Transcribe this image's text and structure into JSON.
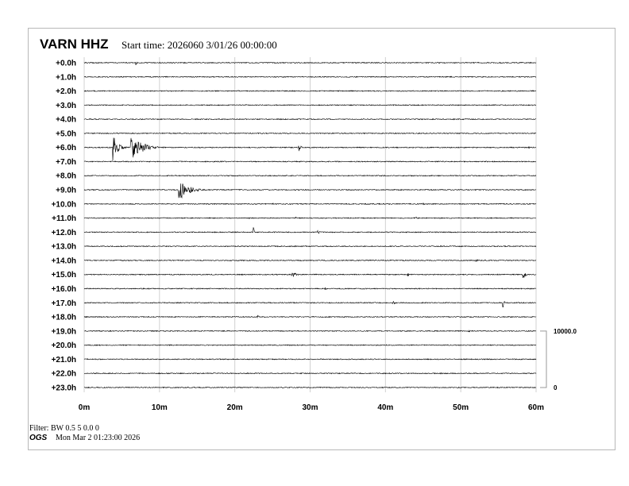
{
  "header": {
    "station": "VARN HHZ",
    "start_time": "Start time: 2026060  3/01/26 00:00:00"
  },
  "footer": {
    "filter": "Filter: BW 0.5 5 0.0 0",
    "org": "OGS",
    "generated": "Mon Mar  2 01:23:00 2026"
  },
  "chart_data": {
    "type": "line",
    "title": "VARN HHZ",
    "row_labels": [
      "+0.0h",
      "+1.0h",
      "+2.0h",
      "+3.0h",
      "+4.0h",
      "+5.0h",
      "+6.0h",
      "+7.0h",
      "+8.0h",
      "+9.0h",
      "+10.0h",
      "+11.0h",
      "+12.0h",
      "+13.0h",
      "+14.0h",
      "+15.0h",
      "+16.0h",
      "+17.0h",
      "+18.0h",
      "+19.0h",
      "+20.0h",
      "+21.0h",
      "+22.0h",
      "+23.0h"
    ],
    "x_ticks": [
      "0m",
      "10m",
      "20m",
      "30m",
      "40m",
      "50m",
      "60m"
    ],
    "xlim": [
      0,
      60
    ],
    "grid": true,
    "scale_labels": [
      "10000.0",
      "0"
    ],
    "trace_color": "#000000",
    "grid_color": "#d0d0d0",
    "events": [
      {
        "hour": 0,
        "minute": 6.9,
        "amplitude": 0.15,
        "duration": 0.3
      },
      {
        "hour": 6,
        "minute": 3.8,
        "amplitude": 1.0,
        "duration": 2.2
      },
      {
        "hour": 6,
        "minute": 6.2,
        "amplitude": 0.95,
        "duration": 5.5
      },
      {
        "hour": 6,
        "minute": 28.5,
        "amplitude": 0.3,
        "duration": 0.8
      },
      {
        "hour": 6,
        "minute": 59.0,
        "amplitude": 0.15,
        "duration": 0.8
      },
      {
        "hour": 9,
        "minute": 12.5,
        "amplitude": 0.9,
        "duration": 4.5
      },
      {
        "hour": 10,
        "minute": 25.0,
        "amplitude": 0.15,
        "duration": 0.3
      },
      {
        "hour": 10,
        "minute": 45.0,
        "amplitude": 0.1,
        "duration": 1.0
      },
      {
        "hour": 11,
        "minute": 28.0,
        "amplitude": 0.1,
        "duration": 1.0
      },
      {
        "hour": 11,
        "minute": 44.0,
        "amplitude": 0.1,
        "duration": 1.5
      },
      {
        "hour": 12,
        "minute": 22.5,
        "amplitude": 0.35,
        "duration": 0.2
      },
      {
        "hour": 12,
        "minute": 31.0,
        "amplitude": 0.15,
        "duration": 1.0
      },
      {
        "hour": 14,
        "minute": 52.0,
        "amplitude": 0.1,
        "duration": 1.5
      },
      {
        "hour": 15,
        "minute": 27.5,
        "amplitude": 0.25,
        "duration": 2.0
      },
      {
        "hour": 15,
        "minute": 43.0,
        "amplitude": 0.12,
        "duration": 1.5
      },
      {
        "hour": 15,
        "minute": 58.3,
        "amplitude": 0.35,
        "duration": 1.0
      },
      {
        "hour": 16,
        "minute": 32.0,
        "amplitude": 0.1,
        "duration": 1.0
      },
      {
        "hour": 17,
        "minute": 41.0,
        "amplitude": 0.2,
        "duration": 0.8
      },
      {
        "hour": 17,
        "minute": 55.6,
        "amplitude": 0.45,
        "duration": 0.4
      },
      {
        "hour": 18,
        "minute": 23.0,
        "amplitude": 0.12,
        "duration": 1.0
      },
      {
        "hour": 19,
        "minute": 51.0,
        "amplitude": 0.12,
        "duration": 1.0
      }
    ]
  }
}
